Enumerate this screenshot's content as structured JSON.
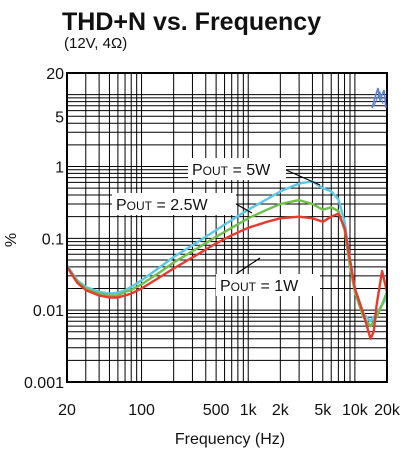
{
  "chart_data": {
    "type": "line",
    "title": "THD+N vs. Frequency",
    "subtitle": "(12V, 4Ω)",
    "xlabel": "Frequency (Hz)",
    "ylabel": "%",
    "x_scale": "log",
    "y_scale": "log",
    "xlim": [
      20,
      20000
    ],
    "ylim": [
      0.001,
      20
    ],
    "grid": true,
    "x_ticks": [
      {
        "value": 20,
        "label": "20"
      },
      {
        "value": 100,
        "label": "100"
      },
      {
        "value": 500,
        "label": "500"
      },
      {
        "value": 1000,
        "label": "1k"
      },
      {
        "value": 2000,
        "label": "2k"
      },
      {
        "value": 5000,
        "label": "5k"
      },
      {
        "value": 10000,
        "label": "10k"
      },
      {
        "value": 20000,
        "label": "20k"
      }
    ],
    "y_ticks": [
      {
        "value": 20,
        "label": "20"
      },
      {
        "value": 5,
        "label": "5"
      },
      {
        "value": 1,
        "label": "1"
      },
      {
        "value": 0.1,
        "label": "0.1"
      },
      {
        "value": 0.01,
        "label": "0.01"
      },
      {
        "value": 0.001,
        "label": "0.001"
      }
    ],
    "series": [
      {
        "name": "POUT = 5W",
        "color": "#5bc8e8",
        "points": [
          [
            20,
            0.042
          ],
          [
            25,
            0.026
          ],
          [
            30,
            0.021
          ],
          [
            40,
            0.018
          ],
          [
            50,
            0.017
          ],
          [
            60,
            0.0175
          ],
          [
            70,
            0.019
          ],
          [
            80,
            0.021
          ],
          [
            100,
            0.026
          ],
          [
            150,
            0.04
          ],
          [
            200,
            0.055
          ],
          [
            300,
            0.08
          ],
          [
            500,
            0.13
          ],
          [
            700,
            0.18
          ],
          [
            1000,
            0.25
          ],
          [
            1500,
            0.35
          ],
          [
            2000,
            0.45
          ],
          [
            3000,
            0.58
          ],
          [
            4000,
            0.62
          ],
          [
            5000,
            0.5
          ],
          [
            6000,
            0.45
          ],
          [
            7000,
            0.35
          ],
          [
            8000,
            0.17
          ],
          [
            9000,
            0.05
          ],
          [
            10000,
            0.02
          ],
          [
            12000,
            0.009
          ],
          [
            14000,
            0.007
          ],
          [
            16000,
            0.009
          ],
          [
            18000,
            0.012
          ],
          [
            20000,
            0.015
          ]
        ]
      },
      {
        "name": "POUT = 2.5W",
        "color": "#6fbf4a",
        "points": [
          [
            20,
            0.04
          ],
          [
            25,
            0.025
          ],
          [
            30,
            0.02
          ],
          [
            40,
            0.017
          ],
          [
            50,
            0.016
          ],
          [
            60,
            0.016
          ],
          [
            70,
            0.018
          ],
          [
            80,
            0.019
          ],
          [
            100,
            0.023
          ],
          [
            150,
            0.034
          ],
          [
            200,
            0.046
          ],
          [
            300,
            0.066
          ],
          [
            500,
            0.105
          ],
          [
            700,
            0.14
          ],
          [
            1000,
            0.19
          ],
          [
            1500,
            0.25
          ],
          [
            2000,
            0.3
          ],
          [
            3000,
            0.34
          ],
          [
            4000,
            0.3
          ],
          [
            5000,
            0.25
          ],
          [
            6000,
            0.27
          ],
          [
            7000,
            0.24
          ],
          [
            8000,
            0.13
          ],
          [
            9000,
            0.04
          ],
          [
            10000,
            0.018
          ],
          [
            12000,
            0.008
          ],
          [
            14000,
            0.006
          ],
          [
            16000,
            0.008
          ],
          [
            18000,
            0.012
          ],
          [
            20000,
            0.018
          ]
        ]
      },
      {
        "name": "POUT = 1W",
        "color": "#e63a2e",
        "points": [
          [
            20,
            0.04
          ],
          [
            25,
            0.024
          ],
          [
            30,
            0.019
          ],
          [
            40,
            0.016
          ],
          [
            50,
            0.015
          ],
          [
            60,
            0.015
          ],
          [
            70,
            0.016
          ],
          [
            80,
            0.017
          ],
          [
            100,
            0.02
          ],
          [
            150,
            0.029
          ],
          [
            200,
            0.038
          ],
          [
            300,
            0.054
          ],
          [
            500,
            0.085
          ],
          [
            700,
            0.11
          ],
          [
            1000,
            0.14
          ],
          [
            1500,
            0.17
          ],
          [
            2000,
            0.19
          ],
          [
            3000,
            0.2
          ],
          [
            4000,
            0.19
          ],
          [
            5000,
            0.17
          ],
          [
            6000,
            0.2
          ],
          [
            7000,
            0.22
          ],
          [
            8000,
            0.14
          ],
          [
            9000,
            0.05
          ],
          [
            10000,
            0.02
          ],
          [
            12000,
            0.009
          ],
          [
            14000,
            0.004
          ],
          [
            15000,
            0.005
          ],
          [
            16000,
            0.012
          ],
          [
            18000,
            0.035
          ],
          [
            20000,
            0.018
          ]
        ]
      }
    ],
    "annotations": [
      {
        "main": "P",
        "sub": "OUT",
        "rest": " = 5W",
        "series": "POUT = 5W"
      },
      {
        "main": "P",
        "sub": "OUT",
        "rest": " = 2.5W",
        "series": "POUT = 2.5W"
      },
      {
        "main": "P",
        "sub": "OUT",
        "rest": " = 1W",
        "series": "POUT = 1W"
      }
    ]
  }
}
